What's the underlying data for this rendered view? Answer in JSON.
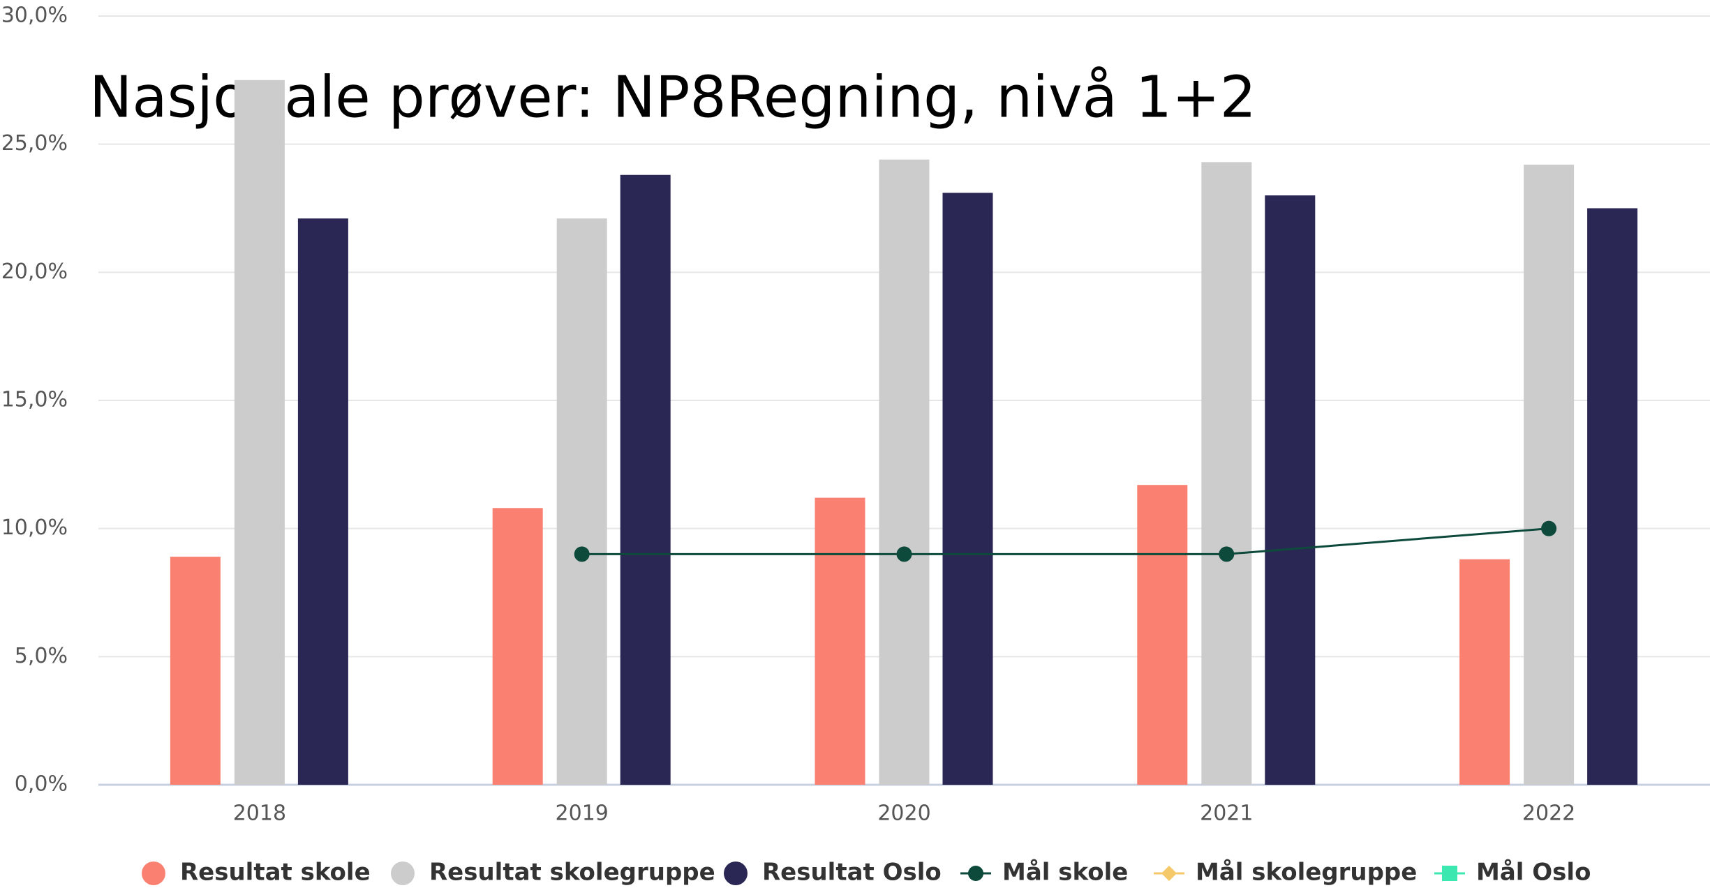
{
  "chart_data": {
    "type": "bar",
    "title": "Nasjonale prøver: NP8Regning, nivå 1+2",
    "categories": [
      "2018",
      "2019",
      "2020",
      "2021",
      "2022"
    ],
    "series": [
      {
        "name": "Resultat skole",
        "type": "bar",
        "color": "#fa8072",
        "values": [
          8.9,
          10.8,
          11.2,
          11.7,
          8.8
        ]
      },
      {
        "name": "Resultat skolegruppe",
        "type": "bar",
        "color": "#cccccc",
        "values": [
          27.5,
          22.1,
          24.4,
          24.3,
          24.2
        ]
      },
      {
        "name": "Resultat Oslo",
        "type": "bar",
        "color": "#2a2755",
        "values": [
          22.1,
          23.8,
          23.1,
          23.0,
          22.5
        ]
      },
      {
        "name": "Mål skole",
        "type": "line",
        "marker": "circle",
        "color": "#0d4a3c",
        "values": [
          null,
          9,
          9,
          9,
          10
        ]
      },
      {
        "name": "Mål skolegruppe",
        "type": "line",
        "marker": "diamond",
        "color": "#f5c86a",
        "values": [
          null,
          null,
          null,
          null,
          null
        ]
      },
      {
        "name": "Mål Oslo",
        "type": "line",
        "marker": "square",
        "color": "#3de8b0",
        "values": [
          null,
          null,
          null,
          null,
          null
        ]
      }
    ],
    "ylim": [
      0,
      30
    ],
    "yticks": [
      {
        "value": 0,
        "label": "0,0%"
      },
      {
        "value": 5,
        "label": "5,0%"
      },
      {
        "value": 10,
        "label": "10,0%"
      },
      {
        "value": 15,
        "label": "15,0%"
      },
      {
        "value": 20,
        "label": "20,0%"
      },
      {
        "value": 25,
        "label": "25,0%"
      },
      {
        "value": 30,
        "label": "30,0%"
      }
    ],
    "grid": true
  }
}
